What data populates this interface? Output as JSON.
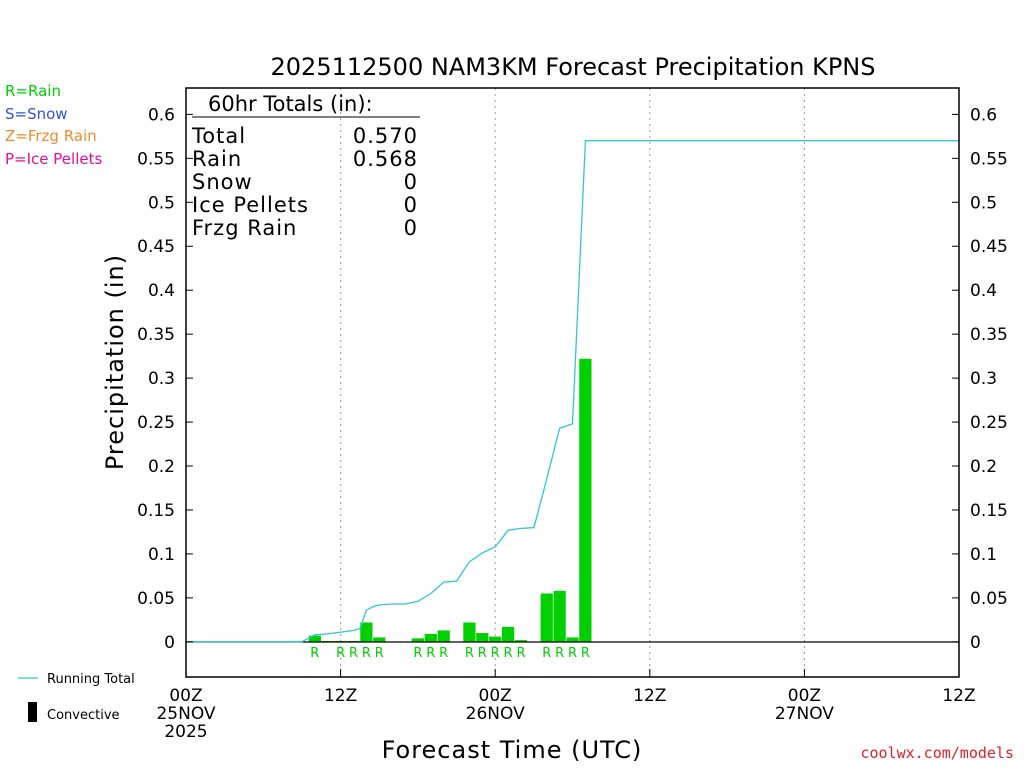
{
  "legend_top": [
    {
      "text": "R=Rain",
      "color": "#00d000"
    },
    {
      "text": "S=Snow",
      "color": "#3050e0"
    },
    {
      "text": "Z=Frzg Rain",
      "color": "#f08a30"
    },
    {
      "text": "P=Ice Pellets",
      "color": "#e0109a"
    }
  ],
  "legend_bottom": {
    "running_total": "Running Total",
    "convective": "Convective"
  },
  "totals": {
    "header": "60hr Totals (in):",
    "rows": [
      {
        "label": "Total",
        "value": "0.570"
      },
      {
        "label": "Rain",
        "value": "0.568"
      },
      {
        "label": "Snow",
        "value": "0"
      },
      {
        "label": "Ice Pellets",
        "value": "0"
      },
      {
        "label": "Frzg Rain",
        "value": "0"
      }
    ]
  },
  "watermark": "coolwx.com/models",
  "chart_data": {
    "type": "bar",
    "title": "2025112500 NAM3KM Forecast Precipitation KPNS",
    "xlabel": "Forecast Time (UTC)",
    "ylabel": "Precipitation (in)",
    "ylim": [
      -0.04,
      0.63
    ],
    "xlim_hours": [
      0,
      60
    ],
    "yticks": [
      "0",
      "0.05",
      "0.1",
      "0.15",
      "0.2",
      "0.25",
      "0.3",
      "0.35",
      "0.4",
      "0.45",
      "0.5",
      "0.55",
      "0.6"
    ],
    "xticks": [
      {
        "hour": 0,
        "lines": [
          "00Z",
          "25NOV",
          "2025"
        ]
      },
      {
        "hour": 12,
        "lines": [
          "12Z"
        ]
      },
      {
        "hour": 24,
        "lines": [
          "00Z",
          "26NOV"
        ]
      },
      {
        "hour": 36,
        "lines": [
          "12Z"
        ]
      },
      {
        "hour": 48,
        "lines": [
          "00Z",
          "27NOV"
        ]
      },
      {
        "hour": 60,
        "lines": [
          "12Z"
        ]
      }
    ],
    "grid_hours": [
      12,
      24,
      36,
      48
    ],
    "bar_color": "#00d000",
    "line_color": "#30c8d0",
    "bars": [
      {
        "hour": 10,
        "value": 0.007
      },
      {
        "hour": 11,
        "value": 0.001
      },
      {
        "hour": 12,
        "value": 0.001
      },
      {
        "hour": 13,
        "value": 0.001
      },
      {
        "hour": 14,
        "value": 0.022
      },
      {
        "hour": 15,
        "value": 0.005
      },
      {
        "hour": 18,
        "value": 0.004
      },
      {
        "hour": 19,
        "value": 0.009
      },
      {
        "hour": 20,
        "value": 0.013
      },
      {
        "hour": 22,
        "value": 0.022
      },
      {
        "hour": 23,
        "value": 0.01
      },
      {
        "hour": 24,
        "value": 0.006
      },
      {
        "hour": 25,
        "value": 0.017
      },
      {
        "hour": 26,
        "value": 0.002
      },
      {
        "hour": 28,
        "value": 0.055
      },
      {
        "hour": 29,
        "value": 0.058
      },
      {
        "hour": 30,
        "value": 0.005
      },
      {
        "hour": 31,
        "value": 0.322
      }
    ],
    "ptype_marks": [
      {
        "hour": 10,
        "label": "R"
      },
      {
        "hour": 12,
        "label": "R"
      },
      {
        "hour": 13,
        "label": "R"
      },
      {
        "hour": 14,
        "label": "R"
      },
      {
        "hour": 15,
        "label": "R"
      },
      {
        "hour": 18,
        "label": "R"
      },
      {
        "hour": 19,
        "label": "R"
      },
      {
        "hour": 20,
        "label": "R"
      },
      {
        "hour": 22,
        "label": "R"
      },
      {
        "hour": 23,
        "label": "R"
      },
      {
        "hour": 24,
        "label": "R"
      },
      {
        "hour": 25,
        "label": "R"
      },
      {
        "hour": 26,
        "label": "R"
      },
      {
        "hour": 28,
        "label": "R"
      },
      {
        "hour": 29,
        "label": "R"
      },
      {
        "hour": 30,
        "label": "R"
      },
      {
        "hour": 31,
        "label": "R"
      }
    ],
    "running_total": [
      [
        0,
        0
      ],
      [
        9,
        0
      ],
      [
        10,
        0.008
      ],
      [
        11,
        0.009
      ],
      [
        12,
        0.011
      ],
      [
        13,
        0.013
      ],
      [
        13.5,
        0.015
      ],
      [
        14,
        0.036
      ],
      [
        14.5,
        0.04
      ],
      [
        15,
        0.042
      ],
      [
        16,
        0.043
      ],
      [
        17,
        0.043
      ],
      [
        18,
        0.046
      ],
      [
        19,
        0.055
      ],
      [
        20,
        0.068
      ],
      [
        21,
        0.069
      ],
      [
        22,
        0.091
      ],
      [
        23,
        0.101
      ],
      [
        24,
        0.108
      ],
      [
        25,
        0.127
      ],
      [
        26,
        0.129
      ],
      [
        27,
        0.13
      ],
      [
        28,
        0.185
      ],
      [
        29,
        0.243
      ],
      [
        30,
        0.248
      ],
      [
        31,
        0.57
      ],
      [
        60,
        0.57
      ]
    ]
  }
}
